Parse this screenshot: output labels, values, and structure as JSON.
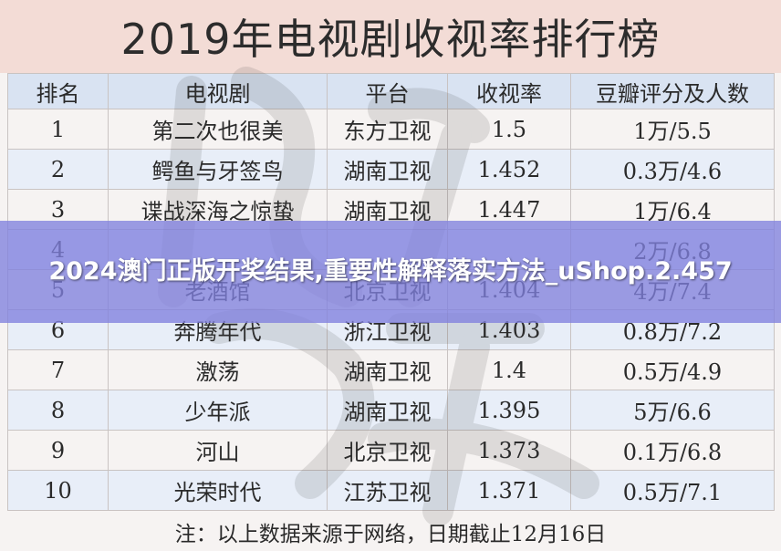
{
  "title": "2019年电视剧收视率排行榜",
  "table": {
    "headers": [
      "排名",
      "电视剧",
      "平台",
      "收视率",
      "豆瓣评分及人数"
    ],
    "rows": [
      [
        "1",
        "第二次也很美",
        "东方卫视",
        "1.5",
        "1万/5.5"
      ],
      [
        "2",
        "鳄鱼与牙签鸟",
        "湖南卫视",
        "1.452",
        "0.3万/4.6"
      ],
      [
        "3",
        "谍战深海之惊蛰",
        "湖南卫视",
        "1.447",
        "1万/6.4"
      ],
      [
        "4",
        "",
        "",
        "",
        "2万/6.8"
      ],
      [
        "5",
        "老酒馆",
        "北京卫视",
        "1.404",
        "4万/7.4"
      ],
      [
        "6",
        "奔腾年代",
        "浙江卫视",
        "1.403",
        "0.8万/7.2"
      ],
      [
        "7",
        "激荡",
        "湖南卫视",
        "1.4",
        "0.5万/4.9"
      ],
      [
        "8",
        "少年派",
        "湖南卫视",
        "1.395",
        "5万/6.6"
      ],
      [
        "9",
        "河山",
        "北京卫视",
        "1.373",
        "0.1万/6.8"
      ],
      [
        "10",
        "光荣时代",
        "江苏卫视",
        "1.371",
        "0.5万/7.1"
      ]
    ]
  },
  "banner": {
    "text": "2024澳门正版开奖结果,重要性解释落实方法_uShop.2.457"
  },
  "note": "注：以上数据来源于网络，日期截止12月16日",
  "colors": {
    "title_bg": "#f3dcd6",
    "header_bg": "#d9e3f2",
    "row_band": "#e8eef8",
    "banner_bg": "#8080de"
  }
}
